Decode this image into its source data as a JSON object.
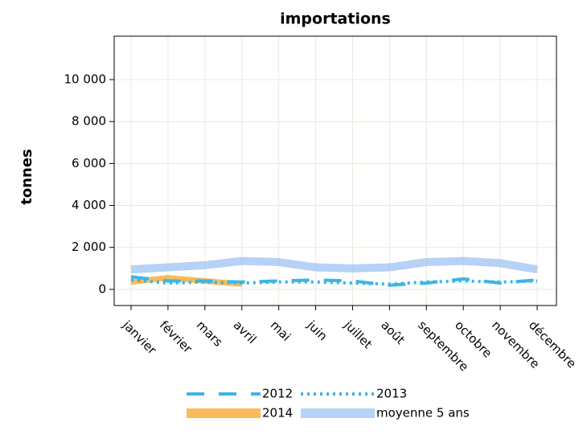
{
  "chart_data": {
    "type": "line",
    "title": "importations",
    "y_label": "tonnes",
    "categories": [
      "janvier",
      "février",
      "mars",
      "avril",
      "mai",
      "juin",
      "juillet",
      "août",
      "septembre",
      "octobre",
      "novembre",
      "décembre"
    ],
    "series": [
      {
        "name": "2012",
        "color": "#3db5e3",
        "style": "dashed",
        "values": [
          600,
          400,
          400,
          350,
          400,
          450,
          400,
          200,
          300,
          500,
          300,
          450
        ]
      },
      {
        "name": "2013",
        "color": "#3db5e3",
        "style": "dotted",
        "values": [
          450,
          300,
          350,
          300,
          350,
          350,
          300,
          250,
          350,
          400,
          350,
          400
        ]
      },
      {
        "name": "2014",
        "color": "#f5a623",
        "style": "solid",
        "values": [
          350,
          550,
          400,
          250,
          null,
          null,
          null,
          null,
          null,
          null,
          null,
          null
        ]
      },
      {
        "name": "moyenne 5 ans",
        "color": "#9ec3f2",
        "style": "solid",
        "values": [
          950,
          1050,
          1150,
          1350,
          1300,
          1050,
          1000,
          1050,
          1300,
          1350,
          1250,
          950
        ]
      }
    ],
    "ylim": [
      -770,
      12070
    ],
    "yticks": [
      0,
      {
        "value": 2000,
        "label": "2 000"
      },
      {
        "value": 4000,
        "label": "4 000"
      },
      {
        "value": 6000,
        "label": "6 000"
      },
      {
        "value": 8000,
        "label": "8 000"
      },
      {
        "value": 10000,
        "label": "10 000"
      }
    ],
    "grid": true
  }
}
